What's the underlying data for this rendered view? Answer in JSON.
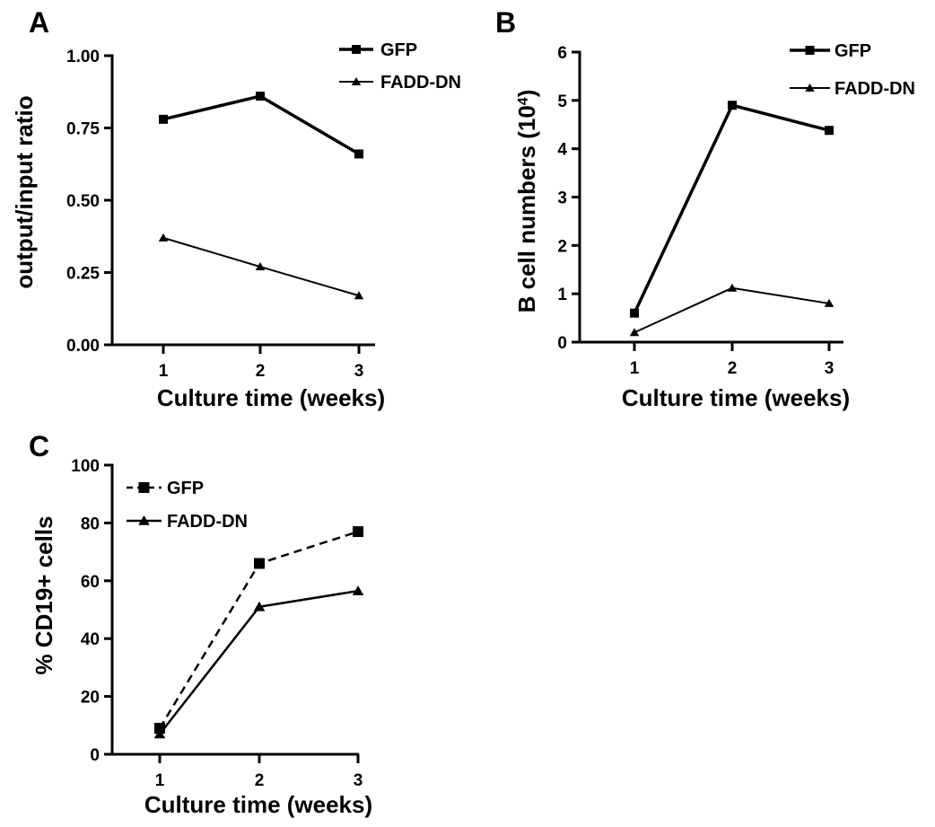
{
  "chart_data": [
    {
      "panel": "A",
      "type": "line",
      "x": [
        1,
        2,
        3
      ],
      "xticks": [
        "1",
        "2",
        "3"
      ],
      "xlabel": "Culture time (weeks)",
      "ylabel": "output/input ratio",
      "yticks": [
        "0.00",
        "0.25",
        "0.50",
        "0.75",
        "1.00"
      ],
      "ylim": [
        0,
        1
      ],
      "legend_position": "top-right",
      "grid": false,
      "series": [
        {
          "name": "GFP",
          "marker": "square",
          "dash": "solid",
          "stroke_width": 3.5,
          "values": [
            0.78,
            0.86,
            0.66
          ]
        },
        {
          "name": "FADD-DN",
          "marker": "triangle",
          "dash": "solid",
          "stroke_width": 2,
          "values": [
            0.37,
            0.27,
            0.17
          ]
        }
      ]
    },
    {
      "panel": "B",
      "type": "line",
      "x": [
        1,
        2,
        3
      ],
      "xticks": [
        "1",
        "2",
        "3"
      ],
      "xlabel": "Culture time (weeks)",
      "ylabel": "B cell numbers (10",
      "ylabel_sup": "4",
      "ylabel_end": ")",
      "yticks": [
        "0",
        "1",
        "2",
        "3",
        "4",
        "5",
        "6"
      ],
      "ylim": [
        0,
        6
      ],
      "legend_position": "top-right",
      "grid": false,
      "series": [
        {
          "name": "GFP",
          "marker": "square",
          "dash": "solid",
          "stroke_width": 3.5,
          "values": [
            0.6,
            4.9,
            4.38
          ]
        },
        {
          "name": "FADD-DN",
          "marker": "triangle",
          "dash": "solid",
          "stroke_width": 2,
          "values": [
            0.2,
            1.12,
            0.8
          ]
        }
      ]
    },
    {
      "panel": "C",
      "type": "line",
      "x": [
        1,
        2,
        3
      ],
      "xticks": [
        "1",
        "2",
        "3"
      ],
      "xlabel": "Culture time (weeks)",
      "ylabel": "% CD19+ cells",
      "yticks": [
        "0",
        "20",
        "40",
        "60",
        "80",
        "100"
      ],
      "ylim": [
        0,
        100
      ],
      "legend_position": "top-left",
      "grid": false,
      "series": [
        {
          "name": "GFP",
          "marker": "square",
          "dash": "dashed",
          "stroke_width": 2.5,
          "values": [
            9,
            66,
            77
          ]
        },
        {
          "name": "FADD-DN",
          "marker": "triangle",
          "dash": "solid",
          "stroke_width": 2.5,
          "values": [
            7,
            51,
            56.5
          ]
        }
      ]
    }
  ]
}
